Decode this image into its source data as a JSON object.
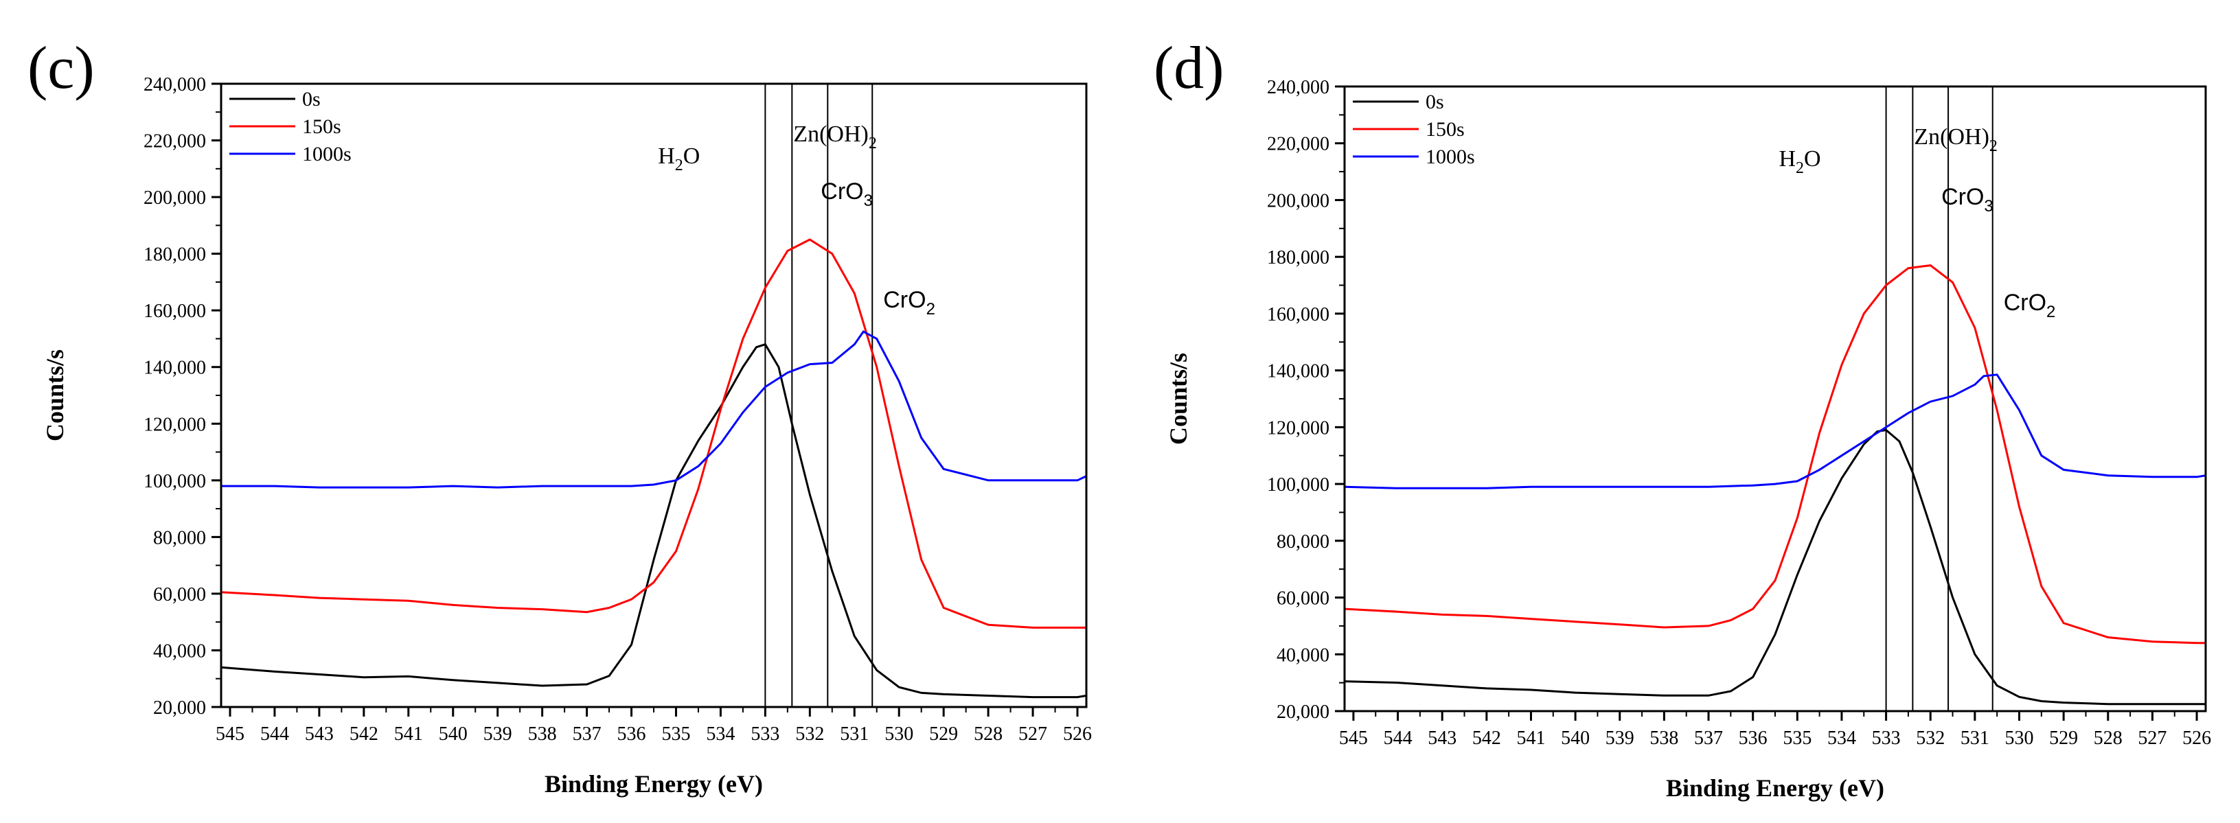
{
  "chart_data": [
    {
      "type": "line",
      "panel_label": "(c)",
      "xlabel": "Binding Energy (eV)",
      "ylabel": "Counts/s",
      "xlim": [
        545.2,
        525.8
      ],
      "ylim": [
        20000,
        240000
      ],
      "x_ticks": [
        545,
        544,
        543,
        542,
        541,
        540,
        539,
        538,
        537,
        536,
        535,
        534,
        533,
        532,
        531,
        530,
        529,
        528,
        527,
        526
      ],
      "y_ticks": [
        20000,
        40000,
        60000,
        80000,
        100000,
        120000,
        140000,
        160000,
        180000,
        200000,
        220000,
        240000
      ],
      "y_tick_labels": [
        "20,000",
        "40,000",
        "60,000",
        "80,000",
        "100,000",
        "120,000",
        "140,000",
        "160,000",
        "180,000",
        "200,000",
        "220,000",
        "240,000"
      ],
      "x_tick_labels": [
        "545",
        "544",
        "543",
        "542",
        "541",
        "540",
        "539",
        "538",
        "537",
        "536",
        "535",
        "534",
        "533",
        "532",
        "531",
        "530",
        "529",
        "528",
        "527",
        "526"
      ],
      "legend_position": "top-left",
      "series": [
        {
          "name": "0s",
          "color": "#000000",
          "x": [
            545.2,
            544,
            543,
            542,
            541,
            540,
            539,
            538,
            537,
            536.5,
            536,
            535.5,
            535,
            534.5,
            534,
            533.5,
            533.2,
            533,
            532.7,
            532.4,
            532,
            531.5,
            531,
            530.5,
            530,
            529.5,
            529,
            528,
            527,
            526,
            525.8
          ],
          "values": [
            34000,
            32500,
            31500,
            30500,
            30800,
            29500,
            28500,
            27500,
            28000,
            31000,
            42000,
            72000,
            100000,
            114000,
            126000,
            140000,
            147000,
            148000,
            140000,
            120000,
            95000,
            68000,
            45000,
            33000,
            27000,
            25000,
            24500,
            24000,
            23500,
            23500,
            24000
          ]
        },
        {
          "name": "150s",
          "color": "#ff0000",
          "x": [
            545.2,
            544,
            543,
            542,
            541,
            540,
            539,
            538,
            537,
            536.5,
            536,
            535.5,
            535,
            534.5,
            534,
            533.5,
            533,
            532.5,
            532,
            531.5,
            531,
            530.5,
            530,
            529.5,
            529,
            528,
            527,
            526,
            525.8
          ],
          "values": [
            60500,
            59500,
            58500,
            58000,
            57500,
            56000,
            55000,
            54500,
            53500,
            55000,
            58000,
            64000,
            75000,
            97000,
            125000,
            150000,
            168000,
            181000,
            185000,
            180000,
            166000,
            140000,
            105000,
            72000,
            55000,
            49000,
            48000,
            48000,
            48000
          ]
        },
        {
          "name": "1000s",
          "color": "#0000ff",
          "x": [
            545.2,
            544,
            543,
            542,
            541,
            540,
            539,
            538,
            537,
            536,
            535.5,
            535,
            534.5,
            534,
            533.5,
            533,
            532.5,
            532,
            531.5,
            531,
            530.8,
            530.5,
            530,
            529.5,
            529,
            528,
            527,
            526,
            525.8
          ],
          "values": [
            98000,
            98000,
            97500,
            97500,
            97500,
            98000,
            97500,
            98000,
            98000,
            98000,
            98500,
            100000,
            105000,
            113000,
            124000,
            133000,
            138000,
            141000,
            141500,
            148000,
            152500,
            150000,
            135000,
            115000,
            104000,
            100000,
            100000,
            100000,
            101500
          ]
        }
      ],
      "reference_lines": [
        {
          "x": 533.0,
          "label": "H2O"
        },
        {
          "x": 532.4,
          "label": "Zn(OH)2"
        },
        {
          "x": 531.6,
          "label": "CrO3"
        },
        {
          "x": 530.6,
          "label": "CrO2"
        }
      ],
      "annotations": [
        {
          "base": "H",
          "sub": "2",
          "rest": "O"
        },
        {
          "base": "Zn(OH)",
          "sub": "2",
          "rest": ""
        },
        {
          "base": "CrO",
          "sub": "3",
          "rest": ""
        },
        {
          "base": "CrO",
          "sub": "2",
          "rest": ""
        }
      ]
    },
    {
      "type": "line",
      "panel_label": "(d)",
      "xlabel": "Binding Energy (eV)",
      "ylabel": "Counts/s",
      "xlim": [
        545.2,
        525.8
      ],
      "ylim": [
        20000,
        240000
      ],
      "x_ticks": [
        545,
        544,
        543,
        542,
        541,
        540,
        539,
        538,
        537,
        536,
        535,
        534,
        533,
        532,
        531,
        530,
        529,
        528,
        527,
        526
      ],
      "y_ticks": [
        20000,
        40000,
        60000,
        80000,
        100000,
        120000,
        140000,
        160000,
        180000,
        200000,
        220000,
        240000
      ],
      "y_tick_labels": [
        "20,000",
        "40,000",
        "60,000",
        "80,000",
        "100,000",
        "120,000",
        "140,000",
        "160,000",
        "180,000",
        "200,000",
        "220,000",
        "240,000"
      ],
      "x_tick_labels": [
        "545",
        "544",
        "543",
        "542",
        "541",
        "540",
        "539",
        "538",
        "537",
        "536",
        "535",
        "534",
        "533",
        "532",
        "531",
        "530",
        "529",
        "528",
        "527",
        "526"
      ],
      "legend_position": "top-left",
      "series": [
        {
          "name": "0s",
          "color": "#000000",
          "x": [
            545.2,
            544,
            543,
            542,
            541,
            540,
            539,
            538,
            537,
            536.5,
            536,
            535.5,
            535,
            534.5,
            534,
            533.5,
            533.2,
            533,
            532.7,
            532.4,
            532,
            531.5,
            531,
            530.5,
            530,
            529.5,
            529,
            528,
            527,
            526,
            525.8
          ],
          "values": [
            30500,
            30000,
            29000,
            28000,
            27500,
            26500,
            26000,
            25500,
            25500,
            27000,
            32000,
            47000,
            68000,
            87000,
            102000,
            114000,
            118500,
            119000,
            115000,
            104000,
            85000,
            60000,
            40000,
            29000,
            25000,
            23500,
            23000,
            22500,
            22500,
            22500,
            22500
          ]
        },
        {
          "name": "150s",
          "color": "#ff0000",
          "x": [
            545.2,
            544,
            543,
            542,
            541,
            540,
            539,
            538,
            537,
            536.5,
            536,
            535.5,
            535,
            534.5,
            534,
            533.5,
            533,
            532.5,
            532,
            531.5,
            531,
            530.5,
            530,
            529.5,
            529,
            528,
            527,
            526,
            525.8
          ],
          "values": [
            56000,
            55000,
            54000,
            53500,
            52500,
            51500,
            50500,
            49500,
            50000,
            52000,
            56000,
            66000,
            88000,
            118000,
            142000,
            160000,
            170000,
            176000,
            177000,
            171000,
            155000,
            126000,
            92000,
            64000,
            51000,
            46000,
            44500,
            44000,
            44000
          ]
        },
        {
          "name": "1000s",
          "color": "#0000ff",
          "x": [
            545.2,
            544,
            543,
            542,
            541,
            540,
            539,
            538,
            537,
            536,
            535.5,
            535,
            534.5,
            534,
            533.5,
            533,
            532.5,
            532,
            531.5,
            531,
            530.8,
            530.5,
            530,
            529.5,
            529,
            528,
            527,
            526,
            525.8
          ],
          "values": [
            99000,
            98500,
            98500,
            98500,
            99000,
            99000,
            99000,
            99000,
            99000,
            99500,
            100000,
            101000,
            105000,
            110000,
            115000,
            120000,
            125000,
            129000,
            131000,
            135000,
            138000,
            138500,
            126000,
            110000,
            105000,
            103000,
            102500,
            102500,
            103000
          ]
        }
      ],
      "reference_lines": [
        {
          "x": 533.0,
          "label": "H2O"
        },
        {
          "x": 532.4,
          "label": "Zn(OH)2"
        },
        {
          "x": 531.6,
          "label": "CrO3"
        },
        {
          "x": 530.6,
          "label": "CrO2"
        }
      ],
      "annotations": [
        {
          "base": "H",
          "sub": "2",
          "rest": "O"
        },
        {
          "base": "Zn(OH)",
          "sub": "2",
          "rest": ""
        },
        {
          "base": "CrO",
          "sub": "3",
          "rest": ""
        },
        {
          "base": "CrO",
          "sub": "2",
          "rest": ""
        }
      ]
    }
  ]
}
